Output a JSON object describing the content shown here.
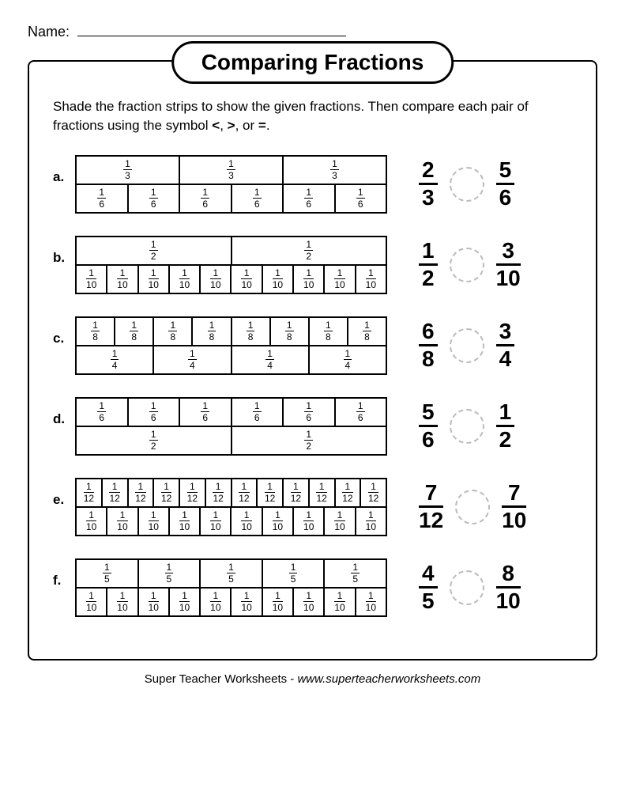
{
  "name_label": "Name:",
  "title": "Comparing Fractions",
  "instructions_pre": "Shade the fraction strips to show the given fractions. Then compare each pair of fractions using the symbol ",
  "sym_lt": "<",
  "sym_gt": ">",
  "sym_eq": "=",
  "instructions_sep": ", ",
  "instructions_or": ", or ",
  "instructions_end": ".",
  "problems": [
    {
      "letter": "a.",
      "rows": [
        {
          "count": 3,
          "num": "1",
          "den": "3"
        },
        {
          "count": 6,
          "num": "1",
          "den": "6"
        }
      ],
      "left": {
        "num": "2",
        "den": "3"
      },
      "right": {
        "num": "5",
        "den": "6"
      }
    },
    {
      "letter": "b.",
      "rows": [
        {
          "count": 2,
          "num": "1",
          "den": "2"
        },
        {
          "count": 10,
          "num": "1",
          "den": "10"
        }
      ],
      "left": {
        "num": "1",
        "den": "2"
      },
      "right": {
        "num": "3",
        "den": "10"
      }
    },
    {
      "letter": "c.",
      "rows": [
        {
          "count": 8,
          "num": "1",
          "den": "8"
        },
        {
          "count": 4,
          "num": "1",
          "den": "4"
        }
      ],
      "left": {
        "num": "6",
        "den": "8"
      },
      "right": {
        "num": "3",
        "den": "4"
      }
    },
    {
      "letter": "d.",
      "rows": [
        {
          "count": 6,
          "num": "1",
          "den": "6"
        },
        {
          "count": 2,
          "num": "1",
          "den": "2"
        }
      ],
      "left": {
        "num": "5",
        "den": "6"
      },
      "right": {
        "num": "1",
        "den": "2"
      }
    },
    {
      "letter": "e.",
      "rows": [
        {
          "count": 12,
          "num": "1",
          "den": "12"
        },
        {
          "count": 10,
          "num": "1",
          "den": "10"
        }
      ],
      "left": {
        "num": "7",
        "den": "12"
      },
      "right": {
        "num": "7",
        "den": "10"
      }
    },
    {
      "letter": "f.",
      "rows": [
        {
          "count": 5,
          "num": "1",
          "den": "5"
        },
        {
          "count": 10,
          "num": "1",
          "den": "10"
        }
      ],
      "left": {
        "num": "4",
        "den": "5"
      },
      "right": {
        "num": "8",
        "den": "10"
      }
    }
  ],
  "footer_text": "Super Teacher Worksheets - ",
  "footer_link": "www.superteacherworksheets.com"
}
